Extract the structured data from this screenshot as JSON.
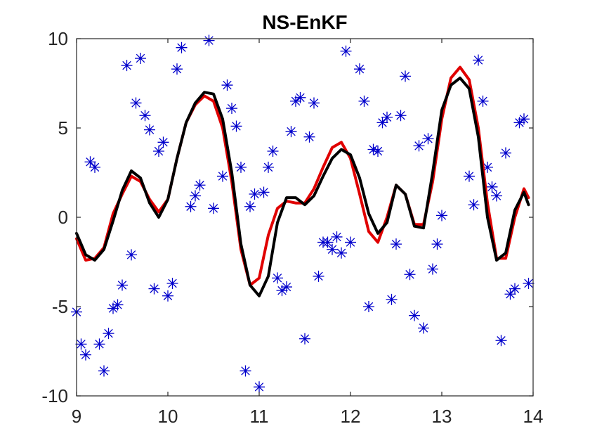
{
  "chart_data": {
    "type": "line",
    "title": "NS-EnKF",
    "xlabel": "",
    "ylabel": "",
    "xlim": [
      9,
      14
    ],
    "ylim": [
      -10,
      10
    ],
    "xticks": [
      9,
      10,
      11,
      12,
      13,
      14
    ],
    "yticks": [
      -10,
      -5,
      0,
      5,
      10
    ],
    "xtick_labels": [
      "9",
      "10",
      "11",
      "12",
      "13",
      "14"
    ],
    "ytick_labels": [
      "-10",
      "-5",
      "0",
      "5",
      "10"
    ],
    "grid": false,
    "legend": "none",
    "series": [
      {
        "kind": "line",
        "color": "#e00000",
        "points": [
          [
            9.0,
            -1.2
          ],
          [
            9.1,
            -2.4
          ],
          [
            9.2,
            -2.3
          ],
          [
            9.3,
            -1.7
          ],
          [
            9.4,
            0.2
          ],
          [
            9.5,
            1.3
          ],
          [
            9.6,
            2.3
          ],
          [
            9.7,
            2.0
          ],
          [
            9.8,
            1.0
          ],
          [
            9.9,
            0.3
          ],
          [
            10.0,
            1.0
          ],
          [
            10.1,
            3.3
          ],
          [
            10.2,
            5.3
          ],
          [
            10.3,
            6.3
          ],
          [
            10.4,
            6.8
          ],
          [
            10.5,
            6.5
          ],
          [
            10.6,
            5.0
          ],
          [
            10.7,
            2.0
          ],
          [
            10.8,
            -1.8
          ],
          [
            10.9,
            -3.8
          ],
          [
            11.0,
            -3.4
          ],
          [
            11.1,
            -1.0
          ],
          [
            11.2,
            0.5
          ],
          [
            11.3,
            0.9
          ],
          [
            11.4,
            0.8
          ],
          [
            11.5,
            0.8
          ],
          [
            11.6,
            1.6
          ],
          [
            11.7,
            2.8
          ],
          [
            11.8,
            3.9
          ],
          [
            11.9,
            4.2
          ],
          [
            12.0,
            3.3
          ],
          [
            12.1,
            1.3
          ],
          [
            12.2,
            -0.8
          ],
          [
            12.3,
            -1.4
          ],
          [
            12.4,
            0.0
          ],
          [
            12.5,
            1.8
          ],
          [
            12.6,
            1.3
          ],
          [
            12.7,
            -0.4
          ],
          [
            12.8,
            -0.4
          ],
          [
            12.9,
            2.0
          ],
          [
            13.0,
            5.5
          ],
          [
            13.1,
            7.8
          ],
          [
            13.2,
            8.4
          ],
          [
            13.3,
            7.7
          ],
          [
            13.4,
            5.0
          ],
          [
            13.5,
            0.8
          ],
          [
            13.6,
            -2.3
          ],
          [
            13.7,
            -2.3
          ],
          [
            13.8,
            0.0
          ],
          [
            13.9,
            1.6
          ],
          [
            13.95,
            1.1
          ]
        ]
      },
      {
        "kind": "line",
        "color": "#000000",
        "points": [
          [
            9.0,
            -0.9
          ],
          [
            9.1,
            -2.1
          ],
          [
            9.2,
            -2.4
          ],
          [
            9.3,
            -1.8
          ],
          [
            9.4,
            -0.2
          ],
          [
            9.5,
            1.5
          ],
          [
            9.6,
            2.6
          ],
          [
            9.7,
            2.2
          ],
          [
            9.8,
            0.8
          ],
          [
            9.9,
            0.0
          ],
          [
            10.0,
            1.0
          ],
          [
            10.1,
            3.3
          ],
          [
            10.2,
            5.3
          ],
          [
            10.3,
            6.4
          ],
          [
            10.4,
            7.0
          ],
          [
            10.5,
            6.9
          ],
          [
            10.6,
            5.5
          ],
          [
            10.7,
            2.5
          ],
          [
            10.8,
            -1.5
          ],
          [
            10.9,
            -3.8
          ],
          [
            11.0,
            -4.4
          ],
          [
            11.1,
            -3.3
          ],
          [
            11.2,
            -0.3
          ],
          [
            11.3,
            1.1
          ],
          [
            11.4,
            1.1
          ],
          [
            11.5,
            0.7
          ],
          [
            11.6,
            1.2
          ],
          [
            11.7,
            2.3
          ],
          [
            11.8,
            3.3
          ],
          [
            11.9,
            3.8
          ],
          [
            12.0,
            3.5
          ],
          [
            12.1,
            2.2
          ],
          [
            12.2,
            0.2
          ],
          [
            12.3,
            -0.9
          ],
          [
            12.4,
            -0.3
          ],
          [
            12.5,
            1.8
          ],
          [
            12.6,
            1.3
          ],
          [
            12.7,
            -0.5
          ],
          [
            12.8,
            -0.6
          ],
          [
            12.9,
            2.5
          ],
          [
            13.0,
            6.0
          ],
          [
            13.1,
            7.4
          ],
          [
            13.2,
            7.8
          ],
          [
            13.3,
            7.2
          ],
          [
            13.4,
            4.5
          ],
          [
            13.5,
            0.0
          ],
          [
            13.6,
            -2.4
          ],
          [
            13.7,
            -2.0
          ],
          [
            13.8,
            0.4
          ],
          [
            13.9,
            1.4
          ],
          [
            13.95,
            0.7
          ]
        ]
      },
      {
        "kind": "scatter",
        "marker": "asterisk",
        "color": "#0000cc",
        "points": [
          [
            9.0,
            -5.3
          ],
          [
            9.05,
            -7.1
          ],
          [
            9.1,
            -7.7
          ],
          [
            9.15,
            3.1
          ],
          [
            9.2,
            2.8
          ],
          [
            9.25,
            -7.1
          ],
          [
            9.3,
            -8.6
          ],
          [
            9.35,
            -6.5
          ],
          [
            9.4,
            -5.1
          ],
          [
            9.45,
            -4.9
          ],
          [
            9.5,
            -3.8
          ],
          [
            9.55,
            8.5
          ],
          [
            9.6,
            -2.1
          ],
          [
            9.65,
            6.4
          ],
          [
            9.7,
            8.9
          ],
          [
            9.75,
            5.7
          ],
          [
            9.8,
            4.9
          ],
          [
            9.85,
            -4.0
          ],
          [
            9.9,
            3.7
          ],
          [
            9.95,
            4.2
          ],
          [
            10.0,
            -4.4
          ],
          [
            10.05,
            -3.7
          ],
          [
            10.1,
            8.3
          ],
          [
            10.15,
            9.5
          ],
          [
            10.25,
            0.6
          ],
          [
            10.3,
            1.2
          ],
          [
            10.35,
            1.8
          ],
          [
            10.45,
            9.9
          ],
          [
            10.5,
            0.5
          ],
          [
            10.6,
            2.3
          ],
          [
            10.65,
            7.4
          ],
          [
            10.7,
            6.1
          ],
          [
            10.75,
            5.1
          ],
          [
            10.8,
            2.8
          ],
          [
            10.85,
            -8.6
          ],
          [
            10.9,
            0.6
          ],
          [
            10.95,
            1.3
          ],
          [
            11.0,
            -9.5
          ],
          [
            11.05,
            1.4
          ],
          [
            11.1,
            2.8
          ],
          [
            11.15,
            3.7
          ],
          [
            11.2,
            -3.4
          ],
          [
            11.25,
            -4.1
          ],
          [
            11.3,
            -3.9
          ],
          [
            11.35,
            4.8
          ],
          [
            11.4,
            6.5
          ],
          [
            11.45,
            6.7
          ],
          [
            11.5,
            -6.8
          ],
          [
            11.55,
            4.5
          ],
          [
            11.6,
            6.4
          ],
          [
            11.65,
            -3.3
          ],
          [
            11.7,
            -1.4
          ],
          [
            11.75,
            -1.4
          ],
          [
            11.8,
            -1.8
          ],
          [
            11.85,
            -1.1
          ],
          [
            11.9,
            -2.0
          ],
          [
            11.95,
            9.3
          ],
          [
            12.0,
            -1.4
          ],
          [
            12.1,
            8.3
          ],
          [
            12.15,
            6.5
          ],
          [
            12.2,
            -5.0
          ],
          [
            12.25,
            3.8
          ],
          [
            12.3,
            3.7
          ],
          [
            12.35,
            5.3
          ],
          [
            12.4,
            5.6
          ],
          [
            12.45,
            -4.6
          ],
          [
            12.5,
            -1.5
          ],
          [
            12.55,
            5.7
          ],
          [
            12.6,
            7.9
          ],
          [
            12.65,
            -3.2
          ],
          [
            12.7,
            -5.5
          ],
          [
            12.75,
            4.0
          ],
          [
            12.8,
            -6.2
          ],
          [
            12.85,
            4.4
          ],
          [
            12.9,
            -2.9
          ],
          [
            12.95,
            -1.5
          ],
          [
            13.0,
            0.1
          ],
          [
            13.3,
            2.3
          ],
          [
            13.35,
            0.7
          ],
          [
            13.4,
            8.8
          ],
          [
            13.45,
            6.5
          ],
          [
            13.5,
            2.8
          ],
          [
            13.55,
            1.7
          ],
          [
            13.6,
            1.2
          ],
          [
            13.65,
            -6.9
          ],
          [
            13.7,
            3.6
          ],
          [
            13.75,
            -4.3
          ],
          [
            13.8,
            -4.0
          ],
          [
            13.85,
            5.3
          ],
          [
            13.9,
            5.5
          ],
          [
            13.95,
            -3.7
          ]
        ]
      }
    ]
  }
}
